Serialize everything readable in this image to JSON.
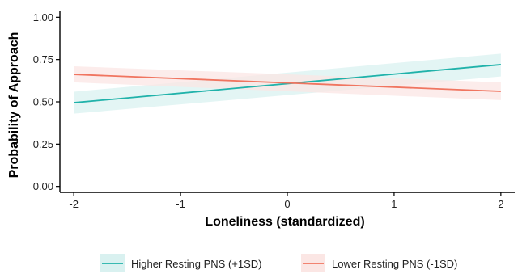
{
  "chart_data": {
    "type": "line",
    "xlabel": "Loneliness (standardized)",
    "ylabel": "Probability of Approach",
    "xlim": [
      -2.13,
      2.13
    ],
    "ylim": [
      -0.035,
      1.035
    ],
    "x_ticks": [
      -2,
      -1,
      0,
      1,
      2
    ],
    "x_tick_labels": [
      "-2",
      "-1",
      "0",
      "1",
      "2"
    ],
    "y_ticks": [
      0.0,
      0.25,
      0.5,
      0.75,
      1.0
    ],
    "y_tick_labels": [
      "0.00",
      "0.25",
      "0.50",
      "0.75",
      "1.00"
    ],
    "grid": false,
    "legend_position": "bottom",
    "series": [
      {
        "name": "Higher Resting PNS (+1SD)",
        "color": "#20b2aa",
        "band_color": "#d9f1f0",
        "x": [
          -2,
          2
        ],
        "y": [
          0.495,
          0.72
        ],
        "ci_lower": [
          0.43,
          0.65
        ],
        "ci_upper": [
          0.56,
          0.785
        ]
      },
      {
        "name": "Lower Resting PNS (-1SD)",
        "color": "#f07560",
        "band_color": "#fbe6e4",
        "x": [
          -2,
          2
        ],
        "y": [
          0.662,
          0.562
        ],
        "ci_lower": [
          0.615,
          0.51
        ],
        "ci_upper": [
          0.71,
          0.615
        ]
      }
    ]
  }
}
